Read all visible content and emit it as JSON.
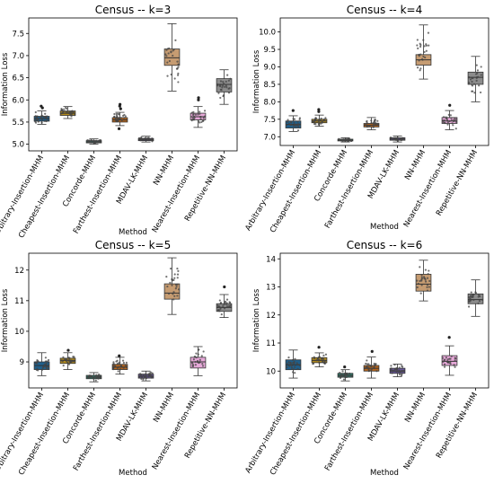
{
  "chart_data": [
    {
      "type": "box",
      "title": "Census -- k=3",
      "xlabel": "Method",
      "ylabel": "Information Loss",
      "ylim": [
        4.85,
        7.85
      ],
      "yticks": [
        "5.0",
        "5.5",
        "6.0",
        "6.5",
        "7.0",
        "7.5"
      ],
      "categories": [
        "Arbitrary-Insertion-MHM",
        "Cheapest-Insertion-MHM",
        "Concorde-MHM",
        "Farthest-Insertion-MHM",
        "MDAV-LK-MHM",
        "NN-MHM",
        "Nearest-Insertion-MHM",
        "Repetitive-NN-MHM"
      ],
      "colors": [
        "#1f5f8b",
        "#b38b1d",
        "#2f7f6f",
        "#b5651d",
        "#6a5a9b",
        "#c69c72",
        "#e7a9d9",
        "#8c8c8c"
      ],
      "boxes": [
        {
          "whislo": 5.45,
          "q1": 5.52,
          "med": 5.58,
          "q3": 5.63,
          "whishi": 5.75,
          "fliers": [
            5.82,
            5.86
          ]
        },
        {
          "whislo": 5.58,
          "q1": 5.65,
          "med": 5.7,
          "q3": 5.75,
          "whishi": 5.85,
          "fliers": []
        },
        {
          "whislo": 5.0,
          "q1": 5.03,
          "med": 5.05,
          "q3": 5.08,
          "whishi": 5.12,
          "fliers": []
        },
        {
          "whislo": 5.42,
          "q1": 5.5,
          "med": 5.55,
          "q3": 5.6,
          "whishi": 5.72,
          "fliers": [
            5.35,
            5.8,
            5.86,
            5.9
          ]
        },
        {
          "whislo": 5.05,
          "q1": 5.08,
          "med": 5.1,
          "q3": 5.13,
          "whishi": 5.18,
          "fliers": []
        },
        {
          "whislo": 6.2,
          "q1": 6.78,
          "med": 6.95,
          "q3": 7.15,
          "whishi": 7.72,
          "fliers": []
        },
        {
          "whislo": 5.38,
          "q1": 5.55,
          "med": 5.62,
          "q3": 5.7,
          "whishi": 5.85,
          "fliers": [
            6.0,
            6.05
          ]
        },
        {
          "whislo": 5.9,
          "q1": 6.18,
          "med": 6.35,
          "q3": 6.48,
          "whishi": 6.68,
          "fliers": []
        }
      ]
    },
    {
      "type": "box",
      "title": "Census -- k=4",
      "xlabel": "Method",
      "ylabel": "Information Loss",
      "ylim": [
        6.75,
        10.4
      ],
      "yticks": [
        "7.0",
        "7.5",
        "8.0",
        "8.5",
        "9.0",
        "9.5",
        "10.0"
      ],
      "categories": [
        "Arbitrary-Insertion-MHM",
        "Cheapest-Insertion-MHM",
        "Concorde-MHM",
        "Farthest-Insertion-MHM",
        "MDAV-LK-MHM",
        "NN-MHM",
        "Nearest-Insertion-MHM",
        "Repetitive-NN-MHM"
      ],
      "colors": [
        "#1f5f8b",
        "#b38b1d",
        "#2f7f6f",
        "#b5651d",
        "#6a5a9b",
        "#c69c72",
        "#e7a9d9",
        "#8c8c8c"
      ],
      "boxes": [
        {
          "whislo": 7.15,
          "q1": 7.25,
          "med": 7.35,
          "q3": 7.45,
          "whishi": 7.6,
          "fliers": [
            7.75
          ]
        },
        {
          "whislo": 7.3,
          "q1": 7.4,
          "med": 7.45,
          "q3": 7.5,
          "whishi": 7.62,
          "fliers": [
            7.72,
            7.78
          ]
        },
        {
          "whislo": 6.85,
          "q1": 6.88,
          "med": 6.9,
          "q3": 6.93,
          "whishi": 6.97,
          "fliers": []
        },
        {
          "whislo": 7.2,
          "q1": 7.28,
          "med": 7.33,
          "q3": 7.38,
          "whishi": 7.55,
          "fliers": []
        },
        {
          "whislo": 6.85,
          "q1": 6.9,
          "med": 6.93,
          "q3": 6.97,
          "whishi": 7.02,
          "fliers": []
        },
        {
          "whislo": 8.65,
          "q1": 9.05,
          "med": 9.2,
          "q3": 9.35,
          "whishi": 10.2,
          "fliers": []
        },
        {
          "whislo": 7.2,
          "q1": 7.38,
          "med": 7.45,
          "q3": 7.55,
          "whishi": 7.75,
          "fliers": [
            7.9
          ]
        },
        {
          "whislo": 8.0,
          "q1": 8.5,
          "med": 8.7,
          "q3": 8.85,
          "whishi": 9.3,
          "fliers": []
        }
      ]
    },
    {
      "type": "box",
      "title": "Census -- k=5",
      "xlabel": "Method",
      "ylabel": "Information Loss",
      "ylim": [
        8.15,
        12.55
      ],
      "yticks": [
        "9",
        "10",
        "11",
        "12"
      ],
      "categories": [
        "Arbitrary-Insertion-MHM",
        "Cheapest-Insertion-MHM",
        "Concorde-MHM",
        "Farthest-Insertion-MHM",
        "MDAV-LK-MHM",
        "NN-MHM",
        "Nearest-Insertion-MHM",
        "Repetitive-NN-MHM"
      ],
      "colors": [
        "#1f5f8b",
        "#b38b1d",
        "#2f7f6f",
        "#b5651d",
        "#6a5a9b",
        "#c69c72",
        "#e7a9d9",
        "#8c8c8c"
      ],
      "boxes": [
        {
          "whislo": 8.55,
          "q1": 8.75,
          "med": 8.88,
          "q3": 9.0,
          "whishi": 9.3,
          "fliers": []
        },
        {
          "whislo": 8.75,
          "q1": 8.95,
          "med": 9.05,
          "q3": 9.12,
          "whishi": 9.3,
          "fliers": [
            9.38
          ]
        },
        {
          "whislo": 8.35,
          "q1": 8.45,
          "med": 8.5,
          "q3": 8.56,
          "whishi": 8.65,
          "fliers": []
        },
        {
          "whislo": 8.6,
          "q1": 8.75,
          "med": 8.83,
          "q3": 8.92,
          "whishi": 9.15,
          "fliers": [
            9.2
          ]
        },
        {
          "whislo": 8.38,
          "q1": 8.47,
          "med": 8.53,
          "q3": 8.6,
          "whishi": 8.7,
          "fliers": []
        },
        {
          "whislo": 10.55,
          "q1": 11.05,
          "med": 11.25,
          "q3": 11.55,
          "whishi": 12.4,
          "fliers": []
        },
        {
          "whislo": 8.55,
          "q1": 8.8,
          "med": 9.0,
          "q3": 9.15,
          "whishi": 9.5,
          "fliers": []
        },
        {
          "whislo": 10.45,
          "q1": 10.65,
          "med": 10.78,
          "q3": 10.9,
          "whishi": 11.2,
          "fliers": [
            11.45
          ]
        }
      ]
    },
    {
      "type": "box",
      "title": "Census -- k=6",
      "xlabel": "Method",
      "ylabel": "Information Loss",
      "ylim": [
        9.4,
        14.2
      ],
      "yticks": [
        "10",
        "11",
        "12",
        "13",
        "14"
      ],
      "categories": [
        "Arbitrary-Insertion-MHM",
        "Cheapest-Insertion-MHM",
        "Concorde-MHM",
        "Farthest-Insertion-MHM",
        "MDAV-LK-MHM",
        "NN-MHM",
        "Nearest-Insertion-MHM",
        "Repetitive-NN-MHM"
      ],
      "colors": [
        "#1f5f8b",
        "#b38b1d",
        "#2f7f6f",
        "#b5651d",
        "#6a5a9b",
        "#c69c72",
        "#e7a9d9",
        "#8c8c8c"
      ],
      "boxes": [
        {
          "whislo": 9.75,
          "q1": 10.05,
          "med": 10.22,
          "q3": 10.4,
          "whishi": 10.75,
          "fliers": []
        },
        {
          "whislo": 10.15,
          "q1": 10.3,
          "med": 10.38,
          "q3": 10.48,
          "whishi": 10.65,
          "fliers": [
            10.85
          ]
        },
        {
          "whislo": 9.65,
          "q1": 9.78,
          "med": 9.85,
          "q3": 9.92,
          "whishi": 10.05,
          "fliers": [
            10.15
          ]
        },
        {
          "whislo": 9.75,
          "q1": 10.0,
          "med": 10.1,
          "q3": 10.2,
          "whishi": 10.5,
          "fliers": [
            10.7
          ]
        },
        {
          "whislo": 9.8,
          "q1": 9.92,
          "med": 10.0,
          "q3": 10.1,
          "whishi": 10.25,
          "fliers": []
        },
        {
          "whislo": 12.5,
          "q1": 12.85,
          "med": 13.1,
          "q3": 13.45,
          "whishi": 13.95,
          "fliers": []
        },
        {
          "whislo": 9.85,
          "q1": 10.2,
          "med": 10.35,
          "q3": 10.55,
          "whishi": 10.9,
          "fliers": [
            11.2
          ]
        },
        {
          "whislo": 11.95,
          "q1": 12.4,
          "med": 12.55,
          "q3": 12.75,
          "whishi": 13.25,
          "fliers": []
        }
      ]
    }
  ]
}
